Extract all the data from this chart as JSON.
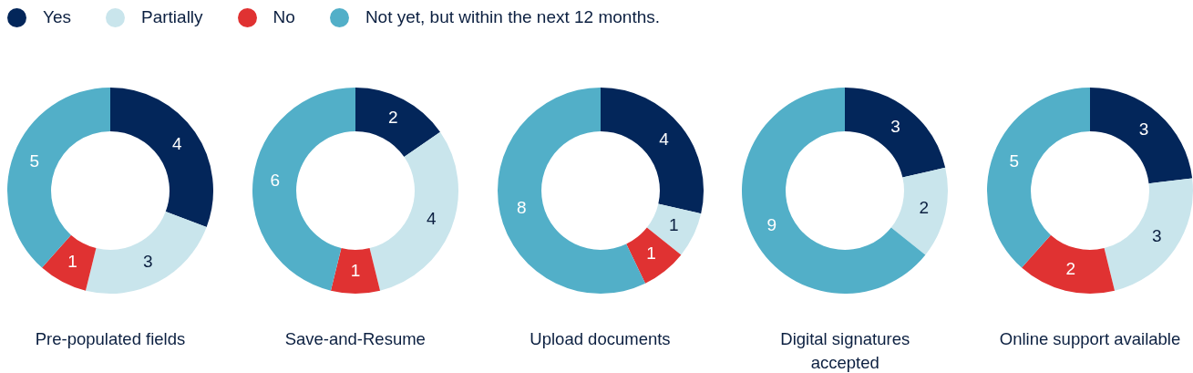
{
  "chart_data": [
    {
      "type": "donut",
      "title": "Pre-populated fields",
      "legend": "top",
      "categories": [
        "Yes",
        "Partially",
        "No",
        "Not yet, but within the next 12 months."
      ],
      "colors": [
        "#03265a",
        "#c9e5ec",
        "#e03232",
        "#52afc8"
      ],
      "values": [
        4,
        3,
        1,
        5
      ],
      "value_labels": [
        "4",
        "3",
        "1",
        "5"
      ]
    },
    {
      "type": "donut",
      "title": "Save-and-Resume",
      "categories": [
        null,
        null,
        null,
        null
      ],
      "colors": [
        "#03265a",
        "#c9e5ec",
        "#e03232",
        "#52afc8"
      ],
      "values": [
        2,
        4,
        1,
        6
      ],
      "value_labels": [
        "2",
        "4",
        "1",
        "6"
      ]
    },
    {
      "type": "donut",
      "title": "Upload documents",
      "categories": [
        null,
        null,
        null,
        null
      ],
      "colors": [
        "#03265a",
        "#c9e5ec",
        "#e03232",
        "#52afc8"
      ],
      "values": [
        4,
        1,
        1,
        8
      ],
      "value_labels": [
        "4",
        "1",
        "1",
        "8"
      ]
    },
    {
      "type": "donut",
      "title": "Digital signatures accepted",
      "categories": [
        null,
        null,
        null,
        null
      ],
      "colors": [
        "#03265a",
        "#c9e5ec",
        "#e03232",
        "#52afc8"
      ],
      "values": [
        3,
        2,
        0,
        9
      ],
      "value_labels": [
        "3",
        "2",
        null,
        "9"
      ]
    },
    {
      "type": "donut",
      "title": "Online support available",
      "categories": [
        null,
        null,
        null,
        null
      ],
      "colors": [
        "#03265a",
        "#c9e5ec",
        "#e03232",
        "#52afc8"
      ],
      "values": [
        3,
        3,
        2,
        5
      ],
      "value_labels": [
        "3",
        "3",
        "2",
        "5"
      ]
    }
  ]
}
